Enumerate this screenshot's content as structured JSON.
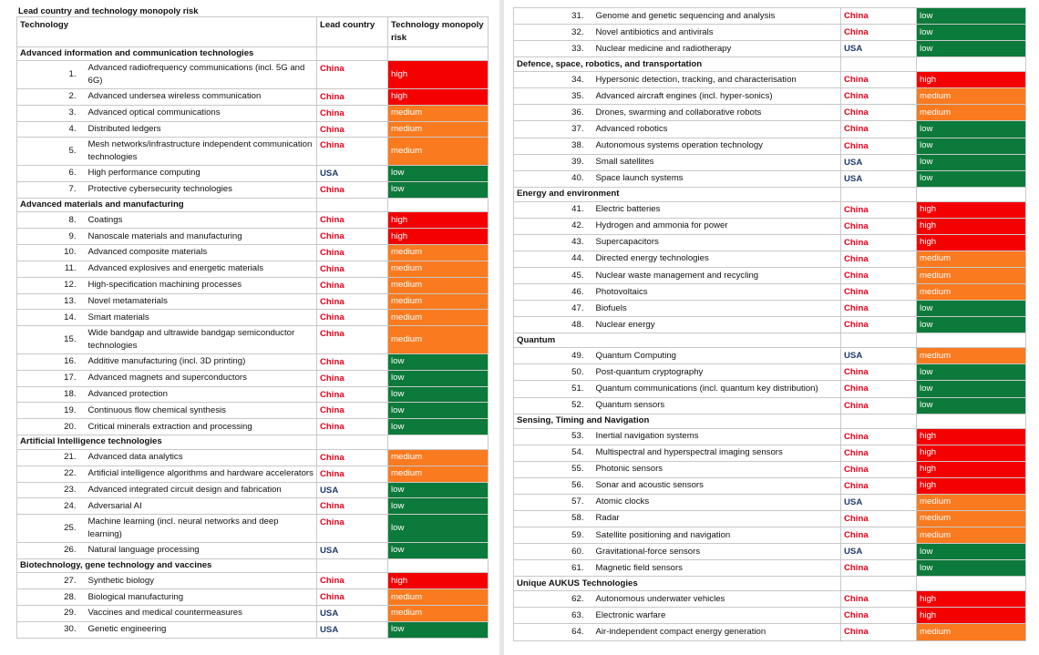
{
  "title": "Lead country and technology monopoly risk",
  "headers": [
    "Technology",
    "Lead country",
    "Technology monopoly risk"
  ],
  "left": [
    {
      "section": "Advanced information and communication technologies"
    },
    {
      "num": "1.",
      "tech": "Advanced radiofrequency communications (incl. 5G and 6G)",
      "country": "China",
      "risk": "high"
    },
    {
      "num": "2.",
      "tech": "Advanced undersea wireless communication",
      "country": "China",
      "risk": "high"
    },
    {
      "num": "3.",
      "tech": "Advanced optical communications",
      "country": "China",
      "risk": "medium"
    },
    {
      "num": "4.",
      "tech": "Distributed ledgers",
      "country": "China",
      "risk": "medium"
    },
    {
      "num": "5.",
      "tech": "Mesh networks/infrastructure independent communication technologies",
      "country": "China",
      "risk": "medium"
    },
    {
      "num": "6.",
      "tech": "High performance computing",
      "country": "USA",
      "risk": "low"
    },
    {
      "num": "7.",
      "tech": "Protective cybersecurity technologies",
      "country": "China",
      "risk": "low"
    },
    {
      "section": "Advanced materials and manufacturing"
    },
    {
      "num": "8.",
      "tech": "Coatings",
      "country": "China",
      "risk": "high"
    },
    {
      "num": "9.",
      "tech": "Nanoscale materials and manufacturing",
      "country": "China",
      "risk": "high"
    },
    {
      "num": "10.",
      "tech": "Advanced composite materials",
      "country": "China",
      "risk": "medium"
    },
    {
      "num": "11.",
      "tech": "Advanced explosives and energetic materials",
      "country": "China",
      "risk": "medium"
    },
    {
      "num": "12.",
      "tech": "High-specification machining processes",
      "country": "China",
      "risk": "medium"
    },
    {
      "num": "13.",
      "tech": "Novel metamaterials",
      "country": "China",
      "risk": "medium"
    },
    {
      "num": "14.",
      "tech": "Smart materials",
      "country": "China",
      "risk": "medium"
    },
    {
      "num": "15.",
      "tech": "Wide bandgap and ultrawide bandgap semiconductor technologies",
      "country": "China",
      "risk": "medium"
    },
    {
      "num": "16.",
      "tech": "Additive manufacturing (incl. 3D printing)",
      "country": "China",
      "risk": "low"
    },
    {
      "num": "17.",
      "tech": "Advanced magnets and superconductors",
      "country": "China",
      "risk": "low"
    },
    {
      "num": "18.",
      "tech": "Advanced protection",
      "country": "China",
      "risk": "low"
    },
    {
      "num": "19.",
      "tech": "Continuous flow chemical synthesis",
      "country": "China",
      "risk": "low"
    },
    {
      "num": "20.",
      "tech": "Critical minerals extraction and processing",
      "country": "China",
      "risk": "low"
    },
    {
      "section": "Artificial Intelligence technologies"
    },
    {
      "num": "21.",
      "tech": "Advanced data analytics",
      "country": "China",
      "risk": "medium"
    },
    {
      "num": "22.",
      "tech": "Artificial intelligence algorithms and hardware accelerators",
      "country": "China",
      "risk": "medium"
    },
    {
      "num": "23.",
      "tech": "Advanced integrated circuit design and fabrication",
      "country": "USA",
      "risk": "low"
    },
    {
      "num": "24.",
      "tech": "Adversarial AI",
      "country": "China",
      "risk": "low"
    },
    {
      "num": "25.",
      "tech": "Machine learning (incl. neural networks and deep learning)",
      "country": "China",
      "risk": "low"
    },
    {
      "num": "26.",
      "tech": "Natural language processing",
      "country": "USA",
      "risk": "low"
    },
    {
      "section": "Biotechnology, gene technology and vaccines"
    },
    {
      "num": "27.",
      "tech": "Synthetic biology",
      "country": "China",
      "risk": "high"
    },
    {
      "num": "28.",
      "tech": "Biological manufacturing",
      "country": "China",
      "risk": "medium"
    },
    {
      "num": "29.",
      "tech": "Vaccines and medical countermeasures",
      "country": "USA",
      "risk": "medium"
    },
    {
      "num": "30.",
      "tech": "Genetic engineering",
      "country": "USA",
      "risk": "low"
    }
  ],
  "right": [
    {
      "num": "31.",
      "tech": "Genome and genetic sequencing and analysis",
      "country": "China",
      "risk": "low"
    },
    {
      "num": "32.",
      "tech": "Novel antibiotics and antivirals",
      "country": "China",
      "risk": "low"
    },
    {
      "num": "33.",
      "tech": "Nuclear medicine and radiotherapy",
      "country": "USA",
      "risk": "low"
    },
    {
      "section": "Defence, space, robotics, and transportation"
    },
    {
      "num": "34.",
      "tech": "Hypersonic detection, tracking, and characterisation",
      "country": "China",
      "risk": "high"
    },
    {
      "num": "35.",
      "tech": "Advanced aircraft engines (incl. hyper-sonics)",
      "country": "China",
      "risk": "medium"
    },
    {
      "num": "36.",
      "tech": "Drones, swarming and collaborative robots",
      "country": "China",
      "risk": "medium"
    },
    {
      "num": "37.",
      "tech": "Advanced robotics",
      "country": "China",
      "risk": "low"
    },
    {
      "num": "38.",
      "tech": "Autonomous systems operation technology",
      "country": "China",
      "risk": "low"
    },
    {
      "num": "39.",
      "tech": "Small satellites",
      "country": "USA",
      "risk": "low"
    },
    {
      "num": "40.",
      "tech": "Space launch systems",
      "country": "USA",
      "risk": "low"
    },
    {
      "section": "Energy and environment"
    },
    {
      "num": "41.",
      "tech": "Electric batteries",
      "country": "China",
      "risk": "high"
    },
    {
      "num": "42.",
      "tech": "Hydrogen and ammonia for power",
      "country": "China",
      "risk": "high"
    },
    {
      "num": "43.",
      "tech": "Supercapacitors",
      "country": "China",
      "risk": "high"
    },
    {
      "num": "44.",
      "tech": "Directed energy technologies",
      "country": "China",
      "risk": "medium"
    },
    {
      "num": "45.",
      "tech": "Nuclear waste management and recycling",
      "country": "China",
      "risk": "medium"
    },
    {
      "num": "46.",
      "tech": "Photovoltaics",
      "country": "China",
      "risk": "medium"
    },
    {
      "num": "47.",
      "tech": "Biofuels",
      "country": "China",
      "risk": "low"
    },
    {
      "num": "48.",
      "tech": "Nuclear energy",
      "country": "China",
      "risk": "low"
    },
    {
      "section": "Quantum"
    },
    {
      "num": "49.",
      "tech": "Quantum Computing",
      "country": "USA",
      "risk": "medium"
    },
    {
      "num": "50.",
      "tech": "Post-quantum cryptography",
      "country": "China",
      "risk": "low"
    },
    {
      "num": "51.",
      "tech": "Quantum communications (incl. quantum key distribution)",
      "country": "China",
      "risk": "low"
    },
    {
      "num": "52.",
      "tech": "Quantum sensors",
      "country": "China",
      "risk": "low"
    },
    {
      "section": "Sensing, Timing and Navigation"
    },
    {
      "num": "53.",
      "tech": "Inertial navigation systems",
      "country": "China",
      "risk": "high"
    },
    {
      "num": "54.",
      "tech": "Multispectral and hyperspectral imaging sensors",
      "country": "China",
      "risk": "high"
    },
    {
      "num": "55.",
      "tech": "Photonic sensors",
      "country": "China",
      "risk": "high"
    },
    {
      "num": "56.",
      "tech": "Sonar and acoustic sensors",
      "country": "China",
      "risk": "high"
    },
    {
      "num": "57.",
      "tech": "Atomic clocks",
      "country": "USA",
      "risk": "medium"
    },
    {
      "num": "58.",
      "tech": "Radar",
      "country": "China",
      "risk": "medium"
    },
    {
      "num": "59.",
      "tech": "Satellite positioning and navigation",
      "country": "China",
      "risk": "medium"
    },
    {
      "num": "60.",
      "tech": "Gravitational-force sensors",
      "country": "USA",
      "risk": "low"
    },
    {
      "num": "61.",
      "tech": "Magnetic field sensors",
      "country": "China",
      "risk": "low"
    },
    {
      "section": "Unique AUKUS Technologies"
    },
    {
      "num": "62.",
      "tech": "Autonomous underwater vehicles",
      "country": "China",
      "risk": "high"
    },
    {
      "num": "63.",
      "tech": "Electronic warfare",
      "country": "China",
      "risk": "high"
    },
    {
      "num": "64.",
      "tech": "Air-independent compact energy generation",
      "country": "China",
      "risk": "medium"
    }
  ]
}
